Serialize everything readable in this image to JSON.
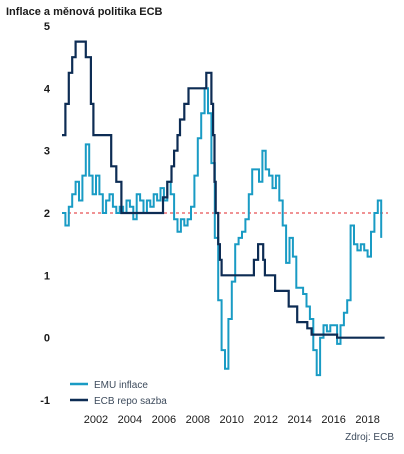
{
  "chart_data": {
    "type": "line",
    "title": "Inflace a měnová politika ECB",
    "source": "Zdroj: ECB",
    "xlabel": "",
    "ylabel": "",
    "xlim": [
      2000.0,
      2019.2
    ],
    "ylim": [
      -1,
      5
    ],
    "x_ticks": [
      2002,
      2004,
      2006,
      2008,
      2010,
      2012,
      2014,
      2016,
      2018
    ],
    "y_ticks": [
      -1,
      0,
      1,
      2,
      3,
      4,
      5
    ],
    "reference_line": {
      "y": 2,
      "style": "dashed",
      "color": "#e0262a"
    },
    "grid": false,
    "legend_position": "bottom-left",
    "series": [
      {
        "name": "EMU inflace",
        "color": "#199bc4",
        "step": true,
        "points": [
          [
            2000.0,
            2.0
          ],
          [
            2000.2,
            1.8
          ],
          [
            2000.4,
            2.1
          ],
          [
            2000.6,
            2.3
          ],
          [
            2000.8,
            2.5
          ],
          [
            2001.0,
            2.2
          ],
          [
            2001.2,
            2.6
          ],
          [
            2001.4,
            3.1
          ],
          [
            2001.6,
            2.6
          ],
          [
            2001.8,
            2.3
          ],
          [
            2002.0,
            2.6
          ],
          [
            2002.2,
            2.3
          ],
          [
            2002.4,
            2.0
          ],
          [
            2002.6,
            2.2
          ],
          [
            2002.8,
            2.3
          ],
          [
            2003.0,
            2.1
          ],
          [
            2003.2,
            2.0
          ],
          [
            2003.4,
            2.1
          ],
          [
            2003.6,
            2.0
          ],
          [
            2003.8,
            2.2
          ],
          [
            2004.0,
            2.1
          ],
          [
            2004.2,
            1.9
          ],
          [
            2004.4,
            2.3
          ],
          [
            2004.6,
            2.2
          ],
          [
            2004.8,
            2.0
          ],
          [
            2005.0,
            2.2
          ],
          [
            2005.2,
            2.1
          ],
          [
            2005.4,
            2.3
          ],
          [
            2005.6,
            2.2
          ],
          [
            2005.8,
            2.4
          ],
          [
            2006.0,
            2.2
          ],
          [
            2006.2,
            2.5
          ],
          [
            2006.4,
            2.3
          ],
          [
            2006.6,
            1.9
          ],
          [
            2006.8,
            1.7
          ],
          [
            2007.0,
            1.9
          ],
          [
            2007.2,
            1.8
          ],
          [
            2007.4,
            1.9
          ],
          [
            2007.6,
            2.1
          ],
          [
            2007.8,
            2.6
          ],
          [
            2008.0,
            3.2
          ],
          [
            2008.2,
            3.6
          ],
          [
            2008.4,
            4.0
          ],
          [
            2008.6,
            3.6
          ],
          [
            2008.8,
            2.8
          ],
          [
            2009.0,
            1.6
          ],
          [
            2009.2,
            0.6
          ],
          [
            2009.4,
            -0.2
          ],
          [
            2009.6,
            -0.5
          ],
          [
            2009.8,
            0.3
          ],
          [
            2010.0,
            0.9
          ],
          [
            2010.2,
            1.5
          ],
          [
            2010.4,
            1.6
          ],
          [
            2010.6,
            1.7
          ],
          [
            2010.8,
            1.9
          ],
          [
            2011.0,
            2.3
          ],
          [
            2011.2,
            2.7
          ],
          [
            2011.4,
            2.7
          ],
          [
            2011.6,
            2.5
          ],
          [
            2011.8,
            3.0
          ],
          [
            2012.0,
            2.7
          ],
          [
            2012.2,
            2.6
          ],
          [
            2012.4,
            2.4
          ],
          [
            2012.6,
            2.6
          ],
          [
            2012.8,
            2.2
          ],
          [
            2013.0,
            1.8
          ],
          [
            2013.2,
            1.2
          ],
          [
            2013.4,
            1.6
          ],
          [
            2013.6,
            1.3
          ],
          [
            2013.8,
            0.8
          ],
          [
            2014.0,
            0.8
          ],
          [
            2014.2,
            0.7
          ],
          [
            2014.4,
            0.5
          ],
          [
            2014.6,
            0.3
          ],
          [
            2014.8,
            -0.2
          ],
          [
            2015.0,
            -0.6
          ],
          [
            2015.2,
            0.0
          ],
          [
            2015.4,
            0.2
          ],
          [
            2015.6,
            0.1
          ],
          [
            2015.8,
            0.2
          ],
          [
            2016.0,
            0.2
          ],
          [
            2016.2,
            -0.1
          ],
          [
            2016.4,
            0.2
          ],
          [
            2016.6,
            0.4
          ],
          [
            2016.8,
            0.6
          ],
          [
            2017.0,
            1.8
          ],
          [
            2017.2,
            1.5
          ],
          [
            2017.4,
            1.4
          ],
          [
            2017.6,
            1.5
          ],
          [
            2017.8,
            1.4
          ],
          [
            2018.0,
            1.3
          ],
          [
            2018.2,
            1.7
          ],
          [
            2018.4,
            2.0
          ],
          [
            2018.6,
            2.2
          ],
          [
            2018.8,
            1.6
          ]
        ]
      },
      {
        "name": "ECB repo sazba",
        "color": "#0d2c54",
        "step": true,
        "points": [
          [
            2000.0,
            3.25
          ],
          [
            2000.2,
            3.75
          ],
          [
            2000.4,
            4.25
          ],
          [
            2000.6,
            4.5
          ],
          [
            2000.8,
            4.75
          ],
          [
            2001.4,
            4.5
          ],
          [
            2001.7,
            3.75
          ],
          [
            2001.85,
            3.25
          ],
          [
            2002.9,
            2.75
          ],
          [
            2003.2,
            2.5
          ],
          [
            2003.5,
            2.0
          ],
          [
            2005.95,
            2.25
          ],
          [
            2006.2,
            2.5
          ],
          [
            2006.45,
            2.75
          ],
          [
            2006.6,
            3.0
          ],
          [
            2006.8,
            3.25
          ],
          [
            2006.95,
            3.5
          ],
          [
            2007.2,
            3.75
          ],
          [
            2007.45,
            4.0
          ],
          [
            2008.5,
            4.25
          ],
          [
            2008.8,
            3.75
          ],
          [
            2008.9,
            3.25
          ],
          [
            2008.98,
            2.5
          ],
          [
            2009.05,
            2.0
          ],
          [
            2009.2,
            1.5
          ],
          [
            2009.3,
            1.25
          ],
          [
            2009.4,
            1.0
          ],
          [
            2011.3,
            1.25
          ],
          [
            2011.55,
            1.5
          ],
          [
            2011.85,
            1.25
          ],
          [
            2011.95,
            1.0
          ],
          [
            2012.55,
            0.75
          ],
          [
            2013.35,
            0.5
          ],
          [
            2013.85,
            0.25
          ],
          [
            2014.45,
            0.15
          ],
          [
            2014.7,
            0.05
          ],
          [
            2016.2,
            0.0
          ],
          [
            2019.0,
            0.0
          ]
        ]
      }
    ]
  }
}
